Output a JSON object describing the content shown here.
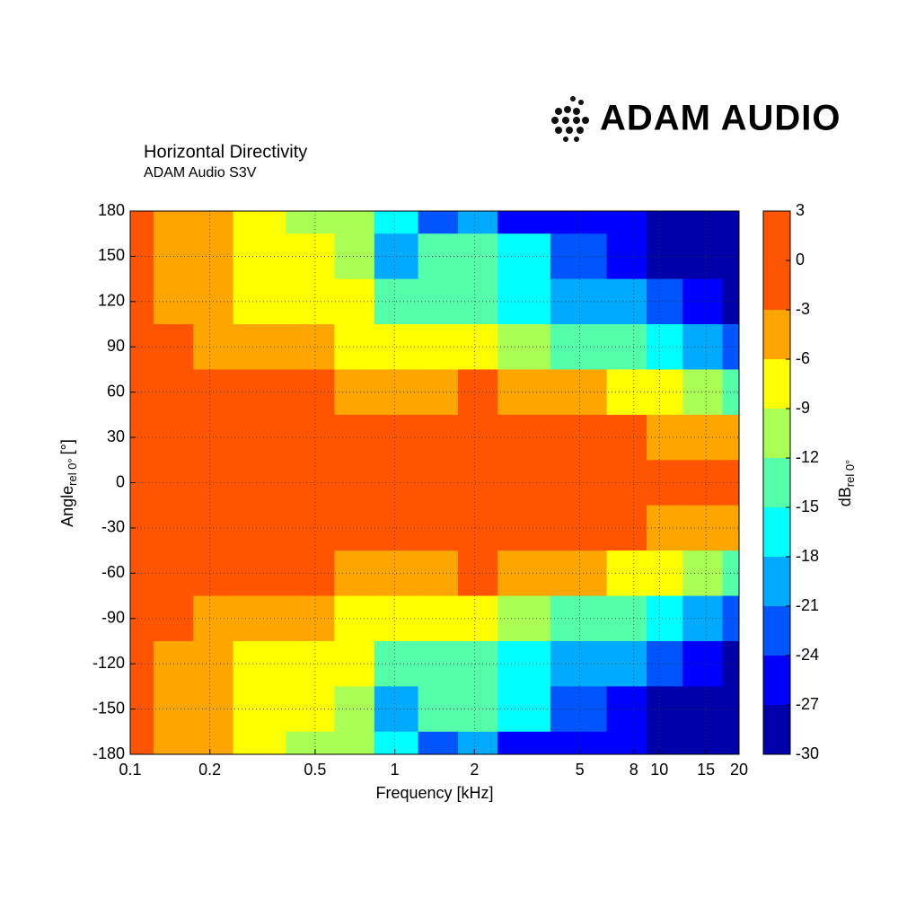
{
  "chart_data": {
    "type": "contour",
    "title": "Horizontal Directivity",
    "subtitle": "ADAM Audio S3V",
    "brand": "ADAM AUDIO",
    "xlabel": "Frequency [kHz]",
    "ylabel": {
      "main": "Angle",
      "sub": "rel 0°",
      "unit": "[°]"
    },
    "x": [
      0.1,
      0.15,
      0.2,
      0.3,
      0.5,
      0.7,
      1,
      1.5,
      2,
      3,
      5,
      8,
      10,
      15,
      20
    ],
    "y": [
      180,
      150,
      120,
      90,
      60,
      30,
      0,
      -30,
      -60,
      -90,
      -120,
      -150,
      -180
    ],
    "z": [
      [
        -2,
        -4,
        -5,
        -7,
        -9,
        -10,
        -15,
        -22,
        -20,
        -24,
        -26,
        -26,
        -28,
        -28,
        -28
      ],
      [
        -1,
        -4,
        -5,
        -7,
        -8,
        -11,
        -19,
        -14,
        -14,
        -17,
        -23,
        -25,
        -27,
        -28,
        -28
      ],
      [
        -1,
        -4,
        -5,
        -6,
        -7,
        -8,
        -12,
        -13,
        -12,
        -16,
        -19,
        -20,
        -22,
        -25,
        -27
      ],
      [
        -1,
        -2,
        -3.5,
        -4,
        -5,
        -6,
        -8,
        -8,
        -7,
        -10,
        -12,
        -14,
        -16,
        -18,
        -22
      ],
      [
        -1,
        -1,
        -1,
        -1,
        -2,
        -3,
        -4,
        -5,
        -2,
        -5,
        -5,
        -7,
        -7,
        -9,
        -12
      ],
      [
        0,
        0,
        0,
        0,
        0,
        -1,
        -1,
        -2,
        -1,
        -2,
        -2,
        -2,
        -3,
        -3,
        -5
      ],
      [
        0,
        0,
        0,
        0,
        0,
        0,
        0,
        0,
        0,
        0,
        0,
        0,
        0,
        0,
        -1
      ],
      [
        0,
        0,
        0,
        0,
        0,
        -1,
        -1,
        -2,
        -1,
        -2,
        -2,
        -2,
        -3,
        -3,
        -5
      ],
      [
        -1,
        -1,
        -1,
        -1,
        -2,
        -3,
        -4,
        -5,
        -2,
        -5,
        -5,
        -7,
        -7,
        -9,
        -12
      ],
      [
        -1,
        -2,
        -3.5,
        -4,
        -5,
        -6,
        -8,
        -8,
        -7,
        -10,
        -12,
        -14,
        -16,
        -18,
        -22
      ],
      [
        -1,
        -4,
        -5,
        -6,
        -7,
        -8,
        -12,
        -13,
        -12,
        -16,
        -19,
        -20,
        -22,
        -25,
        -27
      ],
      [
        -1,
        -4,
        -5,
        -7,
        -8,
        -11,
        -19,
        -14,
        -14,
        -17,
        -23,
        -25,
        -27,
        -28,
        -28
      ],
      [
        -2,
        -4,
        -5,
        -7,
        -9,
        -10,
        -15,
        -22,
        -20,
        -24,
        -26,
        -26,
        -28,
        -28,
        -28
      ]
    ],
    "xscale": "log",
    "xlim": [
      0.1,
      20
    ],
    "xticks": [
      0.1,
      0.2,
      0.5,
      1,
      2,
      5,
      8,
      10,
      15,
      20
    ],
    "ylim": [
      -180,
      180
    ],
    "yticks": [
      180,
      150,
      120,
      90,
      60,
      30,
      0,
      -30,
      -60,
      -90,
      -120,
      -150,
      -180
    ],
    "grid": true,
    "colorbar": {
      "label": {
        "main": "dB",
        "sub": "rel 0°"
      },
      "levels": [
        3,
        0,
        -3,
        -6,
        -9,
        -12,
        -15,
        -18,
        -21,
        -24,
        -27,
        -30
      ],
      "colors": [
        "#ff5500",
        "#ff5500",
        "#ffa500",
        "#ffff00",
        "#aaff55",
        "#55ffaa",
        "#00ffff",
        "#00aaff",
        "#0055ff",
        "#0000ff",
        "#0000aa"
      ]
    }
  }
}
